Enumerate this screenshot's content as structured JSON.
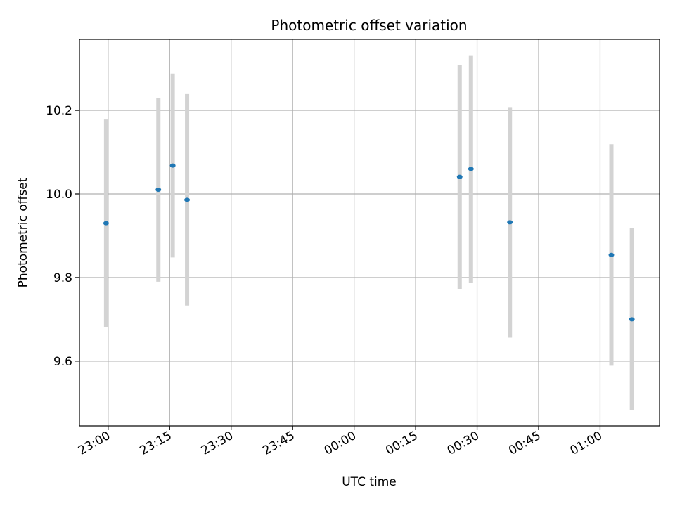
{
  "chart_data": {
    "type": "scatter",
    "title": "Photometric offset variation",
    "xlabel": "UTC time",
    "ylabel": "Photometric offset",
    "grid": true,
    "x_tick_labels": [
      "23:00",
      "23:15",
      "23:30",
      "23:45",
      "00:00",
      "00:15",
      "00:30",
      "00:45",
      "01:00"
    ],
    "x_tick_minutes": [
      0,
      15,
      30,
      45,
      60,
      75,
      90,
      105,
      120
    ],
    "xlim_minutes": [
      -7,
      134.5
    ],
    "y_ticks": [
      "9.6",
      "9.8",
      "10.0",
      "10.2"
    ],
    "ylim": [
      9.445,
      10.37
    ],
    "marker_color": "#1f77b4",
    "errorbar_color": "#d3d3d3",
    "points": [
      {
        "time": "22:59:30",
        "y": 9.93,
        "err": 0.248
      },
      {
        "time": "23:12:15",
        "y": 10.01,
        "err": 0.22
      },
      {
        "time": "23:15:45",
        "y": 10.068,
        "err": 0.22
      },
      {
        "time": "23:19:15",
        "y": 9.986,
        "err": 0.253
      },
      {
        "time": "00:25:45",
        "y": 10.041,
        "err": 0.268
      },
      {
        "time": "00:28:30",
        "y": 10.06,
        "err": 0.272
      },
      {
        "time": "00:38:00",
        "y": 9.932,
        "err": 0.276
      },
      {
        "time": "01:02:45",
        "y": 9.854,
        "err": 0.265
      },
      {
        "time": "01:07:45",
        "y": 9.7,
        "err": 0.218
      }
    ]
  }
}
